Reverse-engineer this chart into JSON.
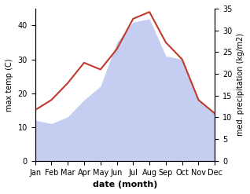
{
  "months": [
    "Jan",
    "Feb",
    "Mar",
    "Apr",
    "May",
    "Jun",
    "Jul",
    "Aug",
    "Sep",
    "Oct",
    "Nov",
    "Dec"
  ],
  "temp": [
    15,
    18,
    23,
    29,
    27,
    33,
    42,
    44,
    35,
    30,
    18,
    14
  ],
  "rainfall_left_scale": [
    12,
    11,
    13,
    18,
    22,
    35,
    41,
    42,
    31,
    30,
    18,
    14
  ],
  "temp_color": "#c0392b",
  "rain_fill_color": "#c5cdf0",
  "left_ylim": [
    0,
    45
  ],
  "right_ylim": [
    0,
    35
  ],
  "left_yticks": [
    0,
    10,
    20,
    30,
    40
  ],
  "right_yticks": [
    0,
    5,
    10,
    15,
    20,
    25,
    30,
    35
  ],
  "ylabel_left": "max temp (C)",
  "ylabel_right": "med. precipitation (kg/m2)",
  "xlabel": "date (month)",
  "figsize": [
    3.18,
    2.47
  ],
  "dpi": 100
}
